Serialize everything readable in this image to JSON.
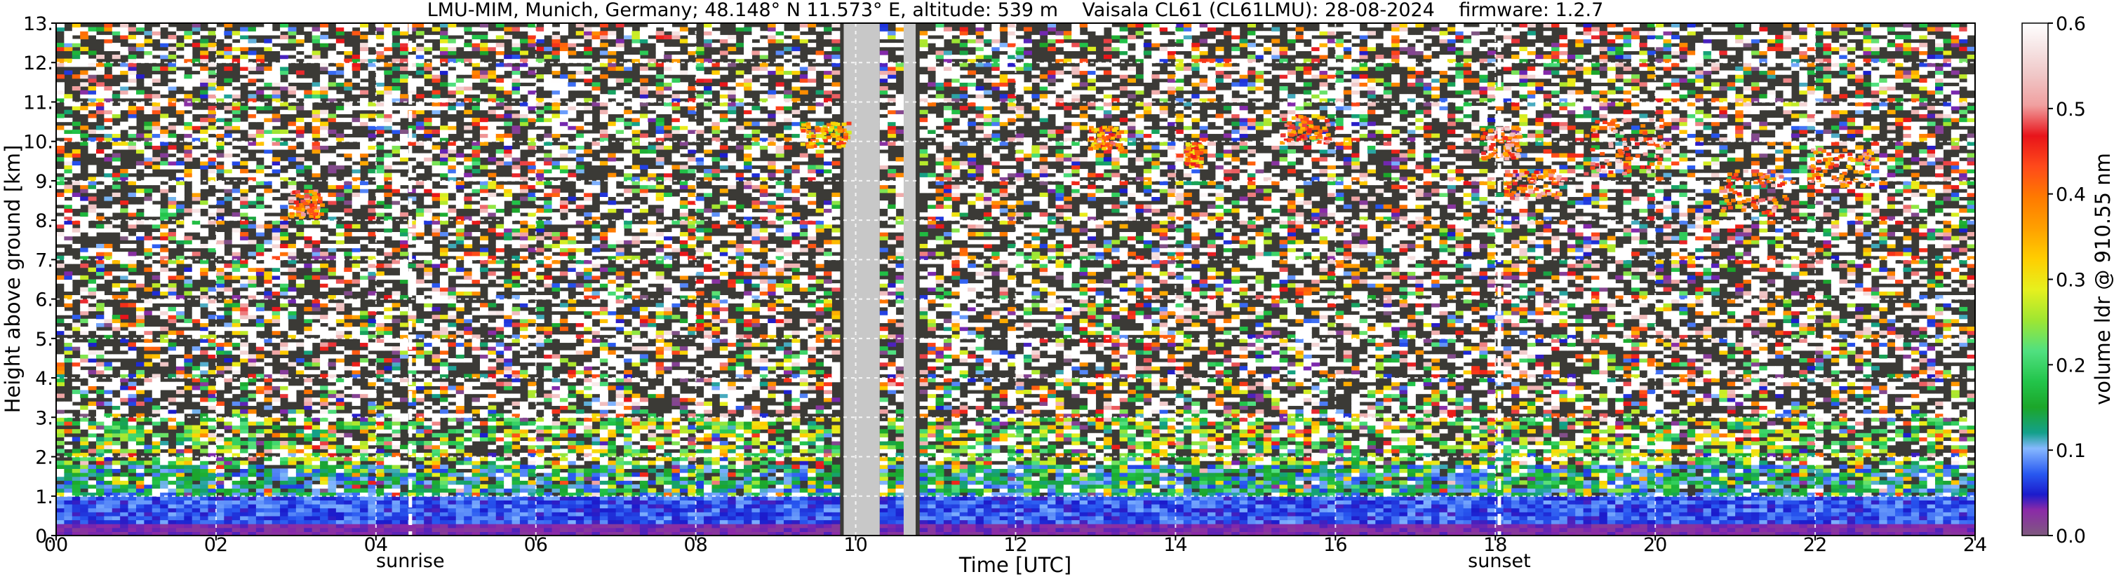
{
  "chart_data": {
    "type": "heatmap",
    "title_left": "LMU-MIM, Munich, Germany; 48.148° N 11.573° E, altitude: 539 m",
    "title_mid": "Vaisala CL61 (CL61LMU): 28-08-2024",
    "title_right": "firmware: 1.2.7",
    "xlabel": "Time [UTC]",
    "ylabel": "Height above ground [km]",
    "colorbar_label": "volume ldr @ 910.55 nm",
    "xlim": [
      0,
      24
    ],
    "ylim": [
      0,
      13
    ],
    "xticks": [
      "00",
      "02",
      "04",
      "06",
      "08",
      "10",
      "12",
      "14",
      "16",
      "18",
      "20",
      "22",
      "24"
    ],
    "yticks": [
      "0.",
      "1.",
      "2.",
      "3.",
      "4.",
      "5.",
      "6.",
      "7.",
      "8.",
      "9.",
      "10.",
      "11.",
      "12.",
      "13."
    ],
    "colorbar_range": [
      0.0,
      0.6
    ],
    "colorbar_ticks": [
      "0.0",
      "0.1",
      "0.2",
      "0.3",
      "0.4",
      "0.5",
      "0.6"
    ],
    "grid": true,
    "markers": [
      {
        "label": "sunrise",
        "x": 4.43
      },
      {
        "label": "sunset",
        "x": 18.05
      }
    ],
    "missing_data": [
      [
        9.85,
        10.3
      ],
      [
        10.6,
        10.75
      ]
    ],
    "features": [
      {
        "label": "",
        "x": [
          2.9,
          3.3
        ],
        "y": [
          8.1,
          8.8
        ],
        "ldr": 0.42
      },
      {
        "label": "",
        "x": [
          9.3,
          9.9
        ],
        "y": [
          9.9,
          10.5
        ],
        "ldr": 0.35
      },
      {
        "label": "",
        "x": [
          12.9,
          13.3
        ],
        "y": [
          9.8,
          10.4
        ],
        "ldr": 0.4
      },
      {
        "label": "",
        "x": [
          14.1,
          14.3
        ],
        "y": [
          9.4,
          10.0
        ],
        "ldr": 0.38
      },
      {
        "label": "",
        "x": [
          15.3,
          15.9
        ],
        "y": [
          10.0,
          10.7
        ],
        "ldr": 0.42
      },
      {
        "label": "",
        "x": [
          17.8,
          18.3
        ],
        "y": [
          9.6,
          10.4
        ],
        "ldr": 0.45
      },
      {
        "label": "",
        "x": [
          18.1,
          18.8
        ],
        "y": [
          8.6,
          9.3
        ],
        "ldr": 0.43
      },
      {
        "label": "",
        "x": [
          19.1,
          20.1
        ],
        "y": [
          9.2,
          10.6
        ],
        "ldr": 0.47
      },
      {
        "label": "",
        "x": [
          20.8,
          21.7
        ],
        "y": [
          8.2,
          9.3
        ],
        "ldr": 0.44
      },
      {
        "label": "",
        "x": [
          21.9,
          22.7
        ],
        "y": [
          8.9,
          9.9
        ],
        "ldr": 0.42
      }
    ],
    "boundary_layer": {
      "noise_top_km": 3.0,
      "aerosol_top_km": 1.0,
      "surface_ldr": 0.02
    }
  }
}
